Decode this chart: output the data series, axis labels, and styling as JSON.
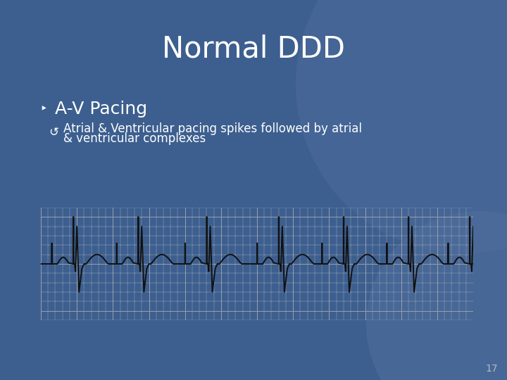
{
  "title": "Normal DDD",
  "bullet1": "A-V Pacing",
  "bullet2_line1": "Atrial & Ventricular pacing spikes followed by atrial",
  "bullet2_line2": "& ventricular complexes",
  "page_number": "17",
  "bg_color": "#3d5f8f",
  "title_color": "#ffffff",
  "text_color": "#ffffff",
  "ecg_bg_color": "#c8cdd6",
  "ecg_grid_major": "#9aa0ab",
  "ecg_grid_minor": "#b8bcc5",
  "ecg_line_color": "#111111",
  "circle1_color": "#4a6a9a",
  "circle2_color": "#5572a0"
}
